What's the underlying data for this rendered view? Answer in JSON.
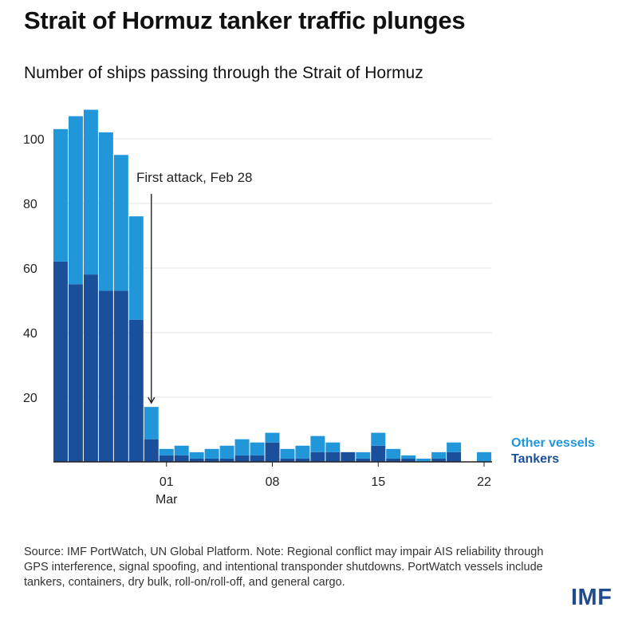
{
  "header": {
    "title": "Strait of Hormuz tanker traffic plunges",
    "subtitle": "Number of ships passing through the Strait of Hormuz"
  },
  "chart_data": {
    "type": "bar",
    "stacked": true,
    "title": "Strait of Hormuz tanker traffic plunges",
    "subtitle": "Number of ships passing through the Strait of Hormuz",
    "ylim": [
      0,
      110
    ],
    "yticks": [
      20,
      40,
      60,
      80,
      100
    ],
    "grid": true,
    "categories": [
      "Feb 22",
      "Feb 23",
      "Feb 24",
      "Feb 25",
      "Feb 26",
      "Feb 27",
      "Feb 28",
      "Mar 01",
      "Mar 02",
      "Mar 03",
      "Mar 04",
      "Mar 05",
      "Mar 06",
      "Mar 07",
      "Mar 08",
      "Mar 09",
      "Mar 10",
      "Mar 11",
      "Mar 12",
      "Mar 13",
      "Mar 14",
      "Mar 15",
      "Mar 16",
      "Mar 17",
      "Mar 18",
      "Mar 19",
      "Mar 20",
      "Mar 21",
      "Mar 22"
    ],
    "xtick_labels": [
      {
        "index": 7,
        "label": "01",
        "sublabel": "Mar"
      },
      {
        "index": 14,
        "label": "08"
      },
      {
        "index": 21,
        "label": "15"
      },
      {
        "index": 28,
        "label": "22"
      }
    ],
    "series": [
      {
        "name": "Tankers",
        "color": "#1a4f9c",
        "values": [
          62,
          55,
          58,
          53,
          53,
          44,
          7,
          2,
          2,
          1,
          1,
          1,
          2,
          2,
          6,
          1,
          1,
          3,
          3,
          3,
          1,
          5,
          1,
          1,
          0,
          1,
          3,
          0,
          0
        ]
      },
      {
        "name": "Other vessels",
        "color": "#2196d8",
        "values": [
          41,
          52,
          51,
          49,
          42,
          32,
          10,
          2,
          3,
          2,
          3,
          4,
          5,
          4,
          3,
          3,
          4,
          5,
          3,
          0,
          2,
          4,
          3,
          1,
          1,
          2,
          3,
          0,
          3
        ]
      }
    ],
    "annotations": [
      {
        "text": "First attack, Feb 28",
        "target_index": 6
      }
    ],
    "legend": {
      "placement": "right",
      "entries": [
        "Other vessels",
        "Tankers"
      ]
    }
  },
  "footer": {
    "source": "Source: IMF PortWatch, UN Global Platform. Note: Regional conflict may impair AIS reliability through GPS interference, signal spoofing, and intentional transponder shutdowns. PortWatch vessels include tankers, containers, dry bulk, roll-on/roll-off, and general cargo.",
    "logo": "IMF"
  }
}
